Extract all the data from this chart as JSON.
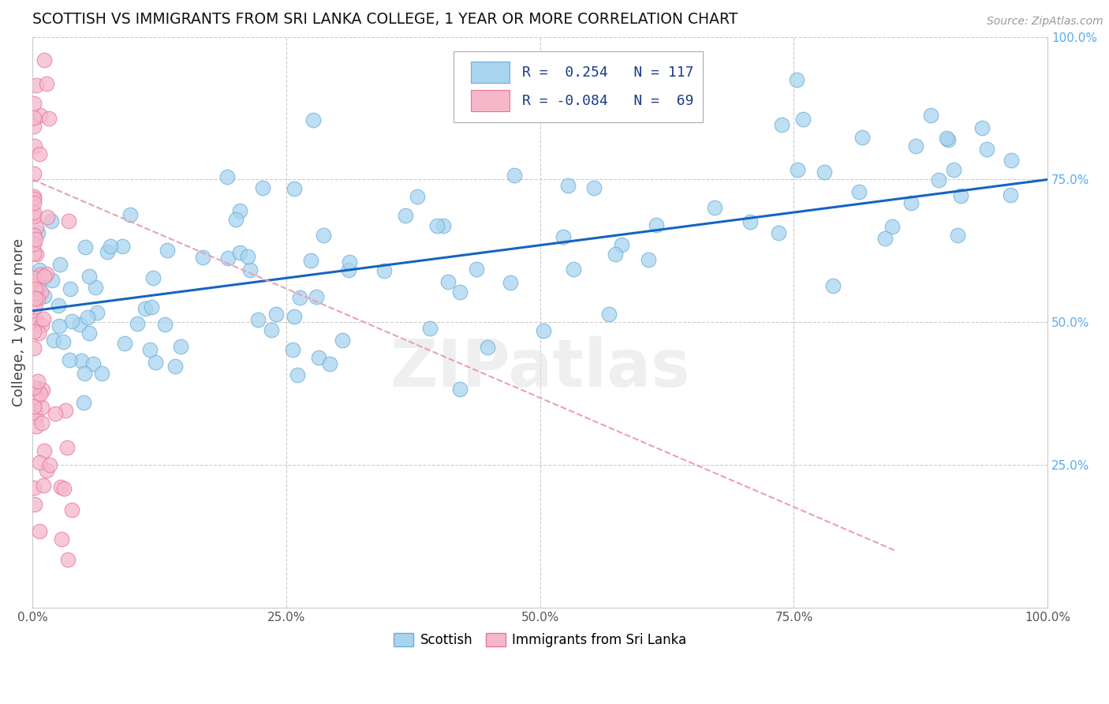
{
  "title": "SCOTTISH VS IMMIGRANTS FROM SRI LANKA COLLEGE, 1 YEAR OR MORE CORRELATION CHART",
  "source": "Source: ZipAtlas.com",
  "ylabel": "College, 1 year or more",
  "xlim": [
    0.0,
    1.0
  ],
  "ylim": [
    0.0,
    1.0
  ],
  "xtick_labels": [
    "0.0%",
    "25.0%",
    "50.0%",
    "75.0%",
    "100.0%"
  ],
  "ytick_labels_right": [
    "25.0%",
    "50.0%",
    "75.0%",
    "100.0%"
  ],
  "scottish_color": "#a8d4f0",
  "sri_lanka_color": "#f5b8cb",
  "scottish_edge_color": "#6aaed6",
  "sri_lanka_edge_color": "#e8759a",
  "trend_scottish_color": "#1565c0",
  "trend_sri_lanka_color": "#e8a0b8",
  "R_scottish": 0.254,
  "N_scottish": 117,
  "R_sri_lanka": -0.084,
  "N_sri_lanka": 69,
  "watermark": "ZIPatlas",
  "legend_labels": [
    "Scottish",
    "Immigrants from Sri Lanka"
  ],
  "grid_color": "#cccccc",
  "tick_label_color": "#5aabf0",
  "ytick_right_positions": [
    0.25,
    0.5,
    0.75,
    1.0
  ],
  "trend_sc_x0": 0.0,
  "trend_sc_y0": 0.52,
  "trend_sc_x1": 1.0,
  "trend_sc_y1": 0.75,
  "trend_sl_x0": 0.0,
  "trend_sl_y0": 0.75,
  "trend_sl_x1": 0.85,
  "trend_sl_y1": 0.1
}
